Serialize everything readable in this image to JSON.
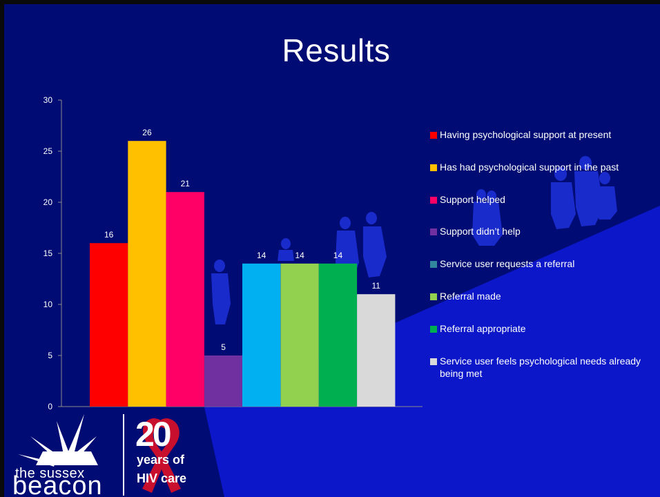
{
  "slide": {
    "title": "Results",
    "background_color": "#000b73",
    "band_color": "#0b17c9",
    "silhouette_color": "#1d2fd6"
  },
  "chart_data": {
    "type": "bar",
    "ylim": [
      0,
      30
    ],
    "yticks": [
      0,
      5,
      10,
      15,
      20,
      25,
      30
    ],
    "grid": false,
    "legend_position": "right",
    "series": [
      {
        "name": "Having psychological support at present",
        "value": 16,
        "color": "#ff0000"
      },
      {
        "name": "Has had psychological support in the past",
        "value": 26,
        "color": "#ffc000"
      },
      {
        "name": "Support helped",
        "value": 21,
        "color": "#ff0066"
      },
      {
        "name": "Support didn’t help",
        "value": 5,
        "color": "#7030a0"
      },
      {
        "name": "Service user requests a referral",
        "value": null,
        "color": "#31859c"
      },
      {
        "name": "Referral made",
        "value": 14,
        "color": "#92d050"
      },
      {
        "name": "Referral appropriate",
        "value": 14,
        "color": "#00b050"
      },
      {
        "name": "Service user feels psychological needs already being met",
        "value": 11,
        "color": "#d9d9d9"
      }
    ],
    "overlay_bar": {
      "value": 14,
      "color": "#00b0f0"
    }
  },
  "logo": {
    "line1": "the sussex",
    "line2": "beacon",
    "badge_number": "20",
    "badge_line1": "years of",
    "badge_line2": "HIV care",
    "ribbon_color": "#c8102e"
  }
}
